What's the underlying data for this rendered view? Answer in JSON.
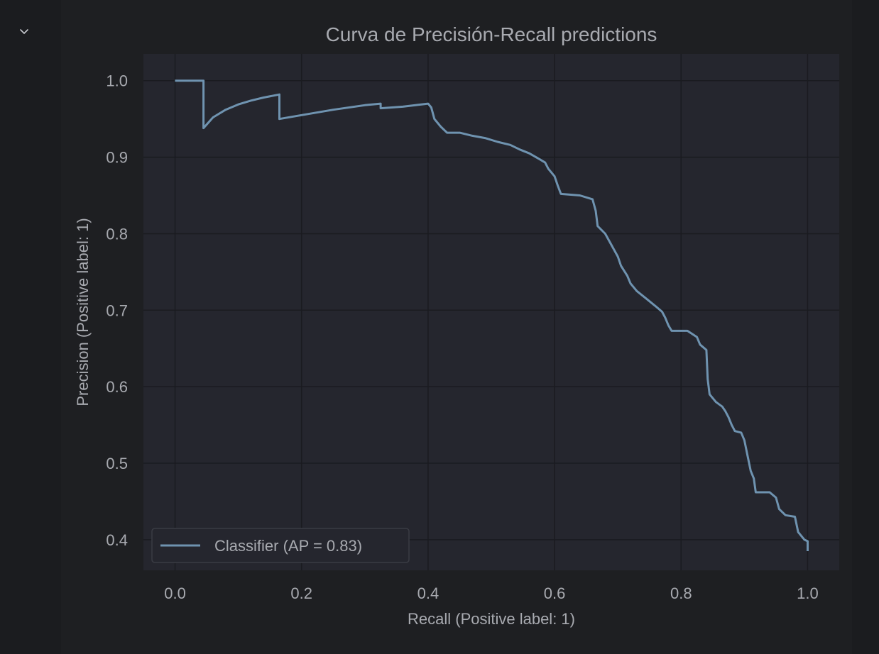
{
  "cell": {
    "toggle_icon": "chevron-down-icon"
  },
  "colors": {
    "page_background": "#1b1c1f",
    "figure_background": "#1e1f22",
    "axes_background": "#25262e",
    "grid": "#1a1b20",
    "text": "#a8aab0",
    "line": "#6f93b0"
  },
  "chart_data": {
    "type": "line",
    "title": "Curva de Precisión-Recall predictions",
    "xlabel": "Recall (Positive label: 1)",
    "ylabel": "Precision (Positive label: 1)",
    "xlim": [
      -0.05,
      1.05
    ],
    "ylim": [
      0.36,
      1.035
    ],
    "xticks": [
      0.0,
      0.2,
      0.4,
      0.6,
      0.8,
      1.0
    ],
    "xtick_labels": [
      "0.0",
      "0.2",
      "0.4",
      "0.6",
      "0.8",
      "1.0"
    ],
    "yticks": [
      0.4,
      0.5,
      0.6,
      0.7,
      0.8,
      0.9,
      1.0
    ],
    "ytick_labels": [
      "0.4",
      "0.5",
      "0.6",
      "0.7",
      "0.8",
      "0.9",
      "1.0"
    ],
    "grid": true,
    "legend_position": "lower-left",
    "series": [
      {
        "name": "Classifier (AP = 0.83)",
        "points": [
          [
            0.0,
            1.0
          ],
          [
            0.045,
            1.0
          ],
          [
            0.045,
            0.938
          ],
          [
            0.06,
            0.952
          ],
          [
            0.08,
            0.962
          ],
          [
            0.1,
            0.969
          ],
          [
            0.12,
            0.974
          ],
          [
            0.14,
            0.978
          ],
          [
            0.165,
            0.982
          ],
          [
            0.165,
            0.95
          ],
          [
            0.2,
            0.955
          ],
          [
            0.25,
            0.962
          ],
          [
            0.3,
            0.968
          ],
          [
            0.325,
            0.97
          ],
          [
            0.325,
            0.964
          ],
          [
            0.36,
            0.966
          ],
          [
            0.4,
            0.97
          ],
          [
            0.405,
            0.965
          ],
          [
            0.41,
            0.95
          ],
          [
            0.42,
            0.94
          ],
          [
            0.43,
            0.932
          ],
          [
            0.45,
            0.932
          ],
          [
            0.47,
            0.928
          ],
          [
            0.49,
            0.925
          ],
          [
            0.51,
            0.92
          ],
          [
            0.53,
            0.916
          ],
          [
            0.545,
            0.91
          ],
          [
            0.56,
            0.905
          ],
          [
            0.575,
            0.898
          ],
          [
            0.585,
            0.893
          ],
          [
            0.59,
            0.885
          ],
          [
            0.6,
            0.875
          ],
          [
            0.605,
            0.863
          ],
          [
            0.61,
            0.852
          ],
          [
            0.64,
            0.85
          ],
          [
            0.66,
            0.845
          ],
          [
            0.665,
            0.83
          ],
          [
            0.668,
            0.81
          ],
          [
            0.68,
            0.8
          ],
          [
            0.69,
            0.785
          ],
          [
            0.7,
            0.77
          ],
          [
            0.705,
            0.758
          ],
          [
            0.715,
            0.745
          ],
          [
            0.72,
            0.735
          ],
          [
            0.73,
            0.725
          ],
          [
            0.745,
            0.715
          ],
          [
            0.76,
            0.705
          ],
          [
            0.77,
            0.698
          ],
          [
            0.775,
            0.69
          ],
          [
            0.78,
            0.68
          ],
          [
            0.785,
            0.673
          ],
          [
            0.81,
            0.673
          ],
          [
            0.825,
            0.665
          ],
          [
            0.83,
            0.655
          ],
          [
            0.84,
            0.648
          ],
          [
            0.842,
            0.61
          ],
          [
            0.845,
            0.59
          ],
          [
            0.855,
            0.58
          ],
          [
            0.865,
            0.574
          ],
          [
            0.87,
            0.568
          ],
          [
            0.875,
            0.56
          ],
          [
            0.88,
            0.55
          ],
          [
            0.885,
            0.542
          ],
          [
            0.895,
            0.54
          ],
          [
            0.9,
            0.53
          ],
          [
            0.905,
            0.51
          ],
          [
            0.91,
            0.49
          ],
          [
            0.915,
            0.48
          ],
          [
            0.918,
            0.462
          ],
          [
            0.94,
            0.462
          ],
          [
            0.95,
            0.455
          ],
          [
            0.955,
            0.44
          ],
          [
            0.965,
            0.432
          ],
          [
            0.98,
            0.43
          ],
          [
            0.985,
            0.41
          ],
          [
            0.995,
            0.4
          ],
          [
            1.0,
            0.398
          ],
          [
            1.0,
            0.385
          ]
        ]
      }
    ]
  }
}
